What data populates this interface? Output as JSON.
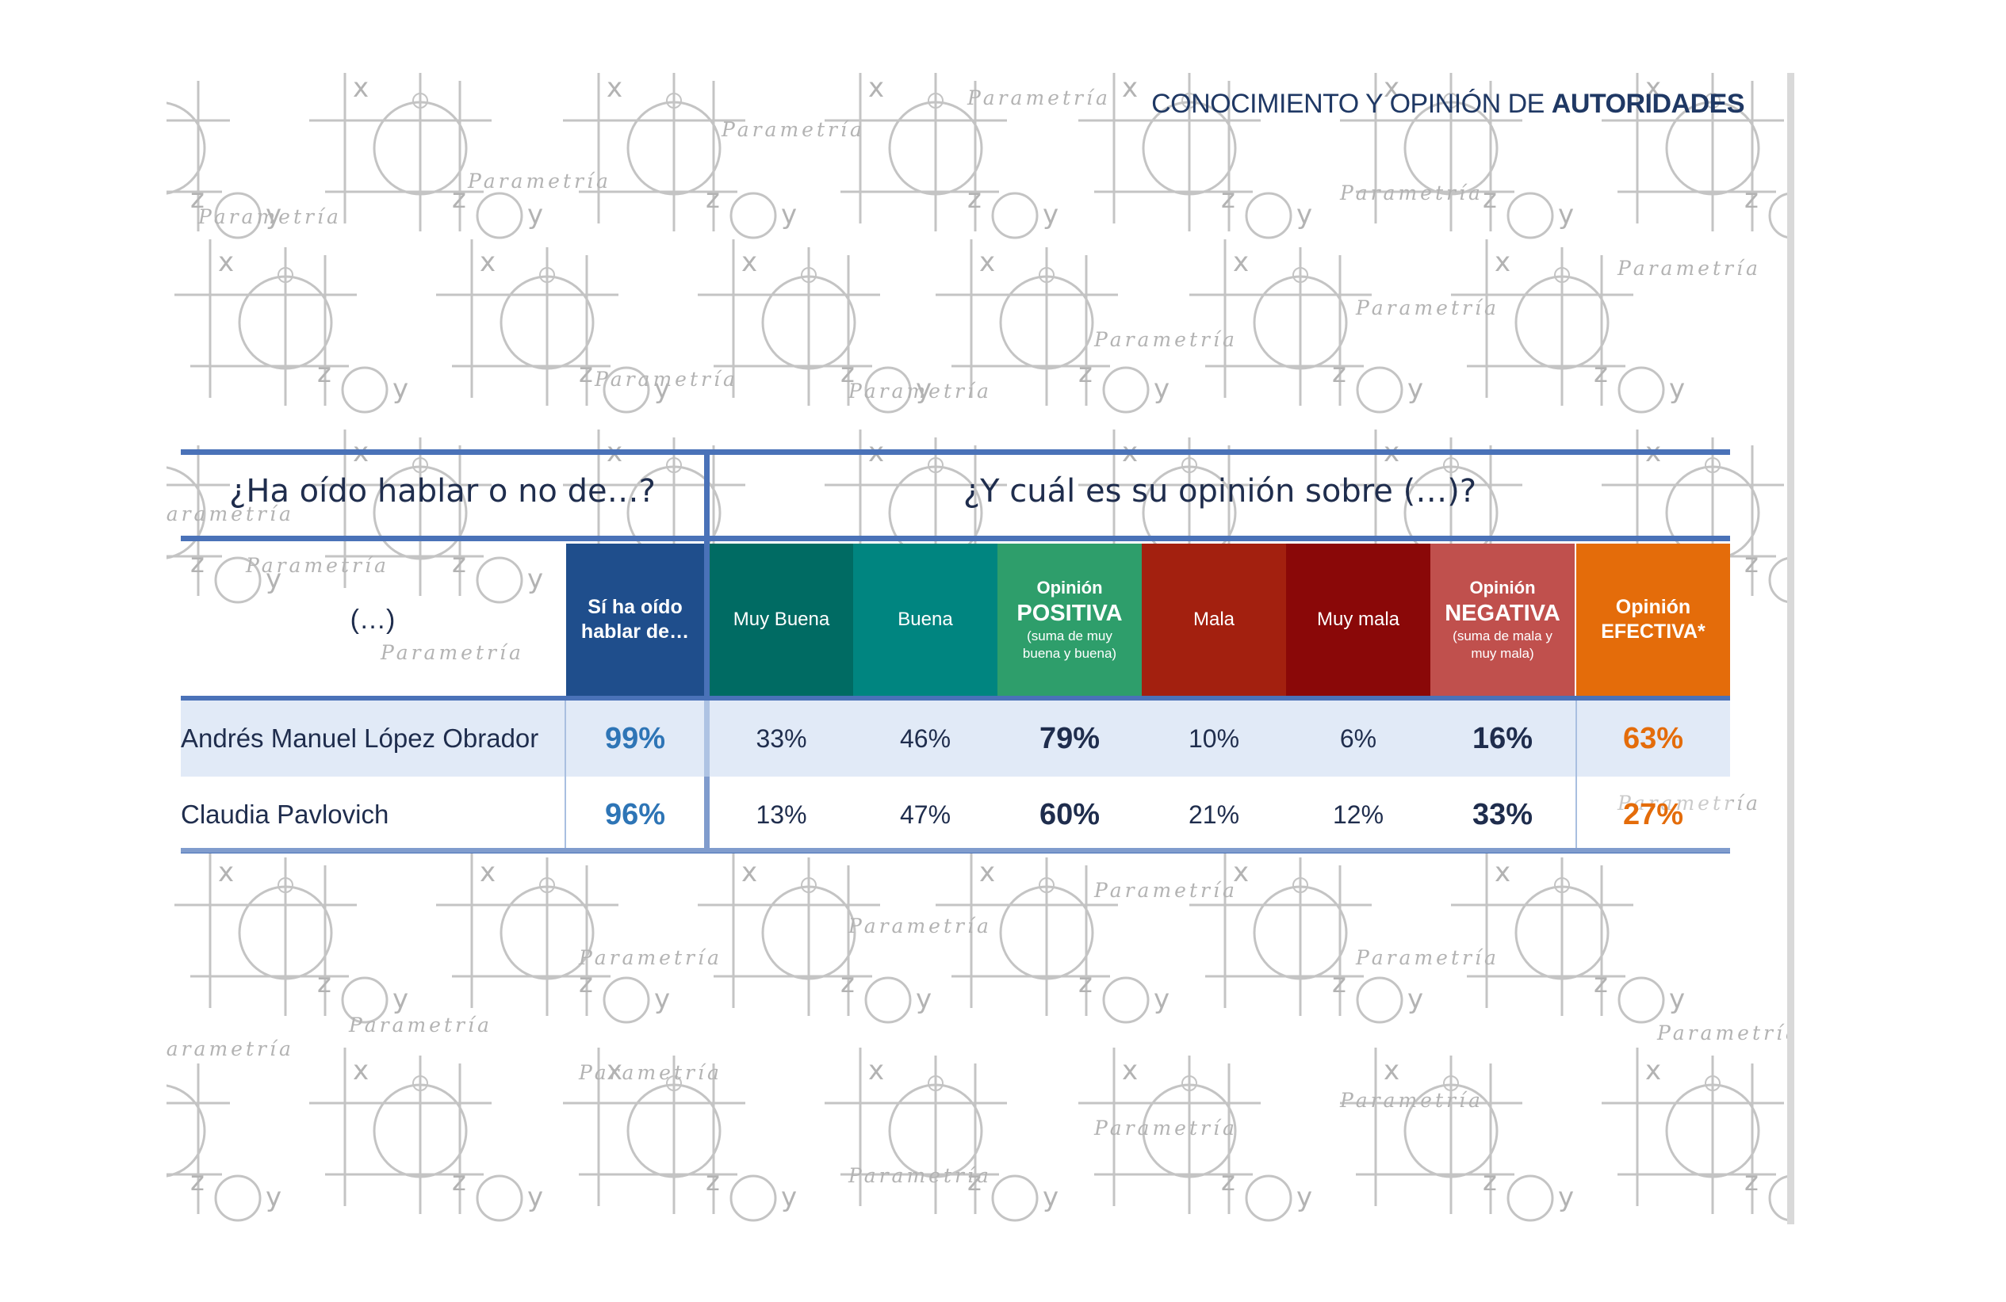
{
  "title": {
    "plain": "CONOCIMIENTO Y OPINIÓN DE ",
    "bold": "AUTORIDADES"
  },
  "watermark": {
    "text": "Parametría",
    "axis_x": "x",
    "axis_y": "y",
    "axis_z": "z"
  },
  "questions": {
    "left": "¿Ha oído hablar o no de…?",
    "right": "¿Y cuál es su opinión sobre (…)?"
  },
  "table": {
    "name_header": "(…)",
    "headers": {
      "heard": [
        "Sí ha oído",
        "hablar de…"
      ],
      "muy_buena": "Muy Buena",
      "buena": "Buena",
      "positiva": [
        "Opinión",
        "POSITIVA",
        "(suma de muy",
        "buena y buena)"
      ],
      "mala": "Mala",
      "muy_mala": "Muy mala",
      "negativa": [
        "Opinión",
        "NEGATIVA",
        "(suma de mala y",
        "muy mala)"
      ],
      "efectiva": [
        "Opinión",
        "EFECTIVA*"
      ]
    },
    "header_colors": {
      "heard": "#1f4e8c",
      "muy_buena": "#006b63",
      "buena": "#008580",
      "positiva": "#2e9e6b",
      "mala": "#a3200f",
      "muy_mala": "#8a0808",
      "negativa": "#c0504d",
      "efectiva": "#e46c0a"
    },
    "rows": [
      {
        "name": "Andrés Manuel López Obrador",
        "heard": "99%",
        "muy_buena": "33%",
        "buena": "46%",
        "positiva": "79%",
        "mala": "10%",
        "muy_mala": "6%",
        "negativa": "16%",
        "efectiva": "63%"
      },
      {
        "name": "Claudia Pavlovich",
        "heard": "96%",
        "muy_buena": "13%",
        "buena": "47%",
        "positiva": "60%",
        "mala": "21%",
        "muy_mala": "12%",
        "negativa": "33%",
        "efectiva": "27%"
      }
    ]
  }
}
